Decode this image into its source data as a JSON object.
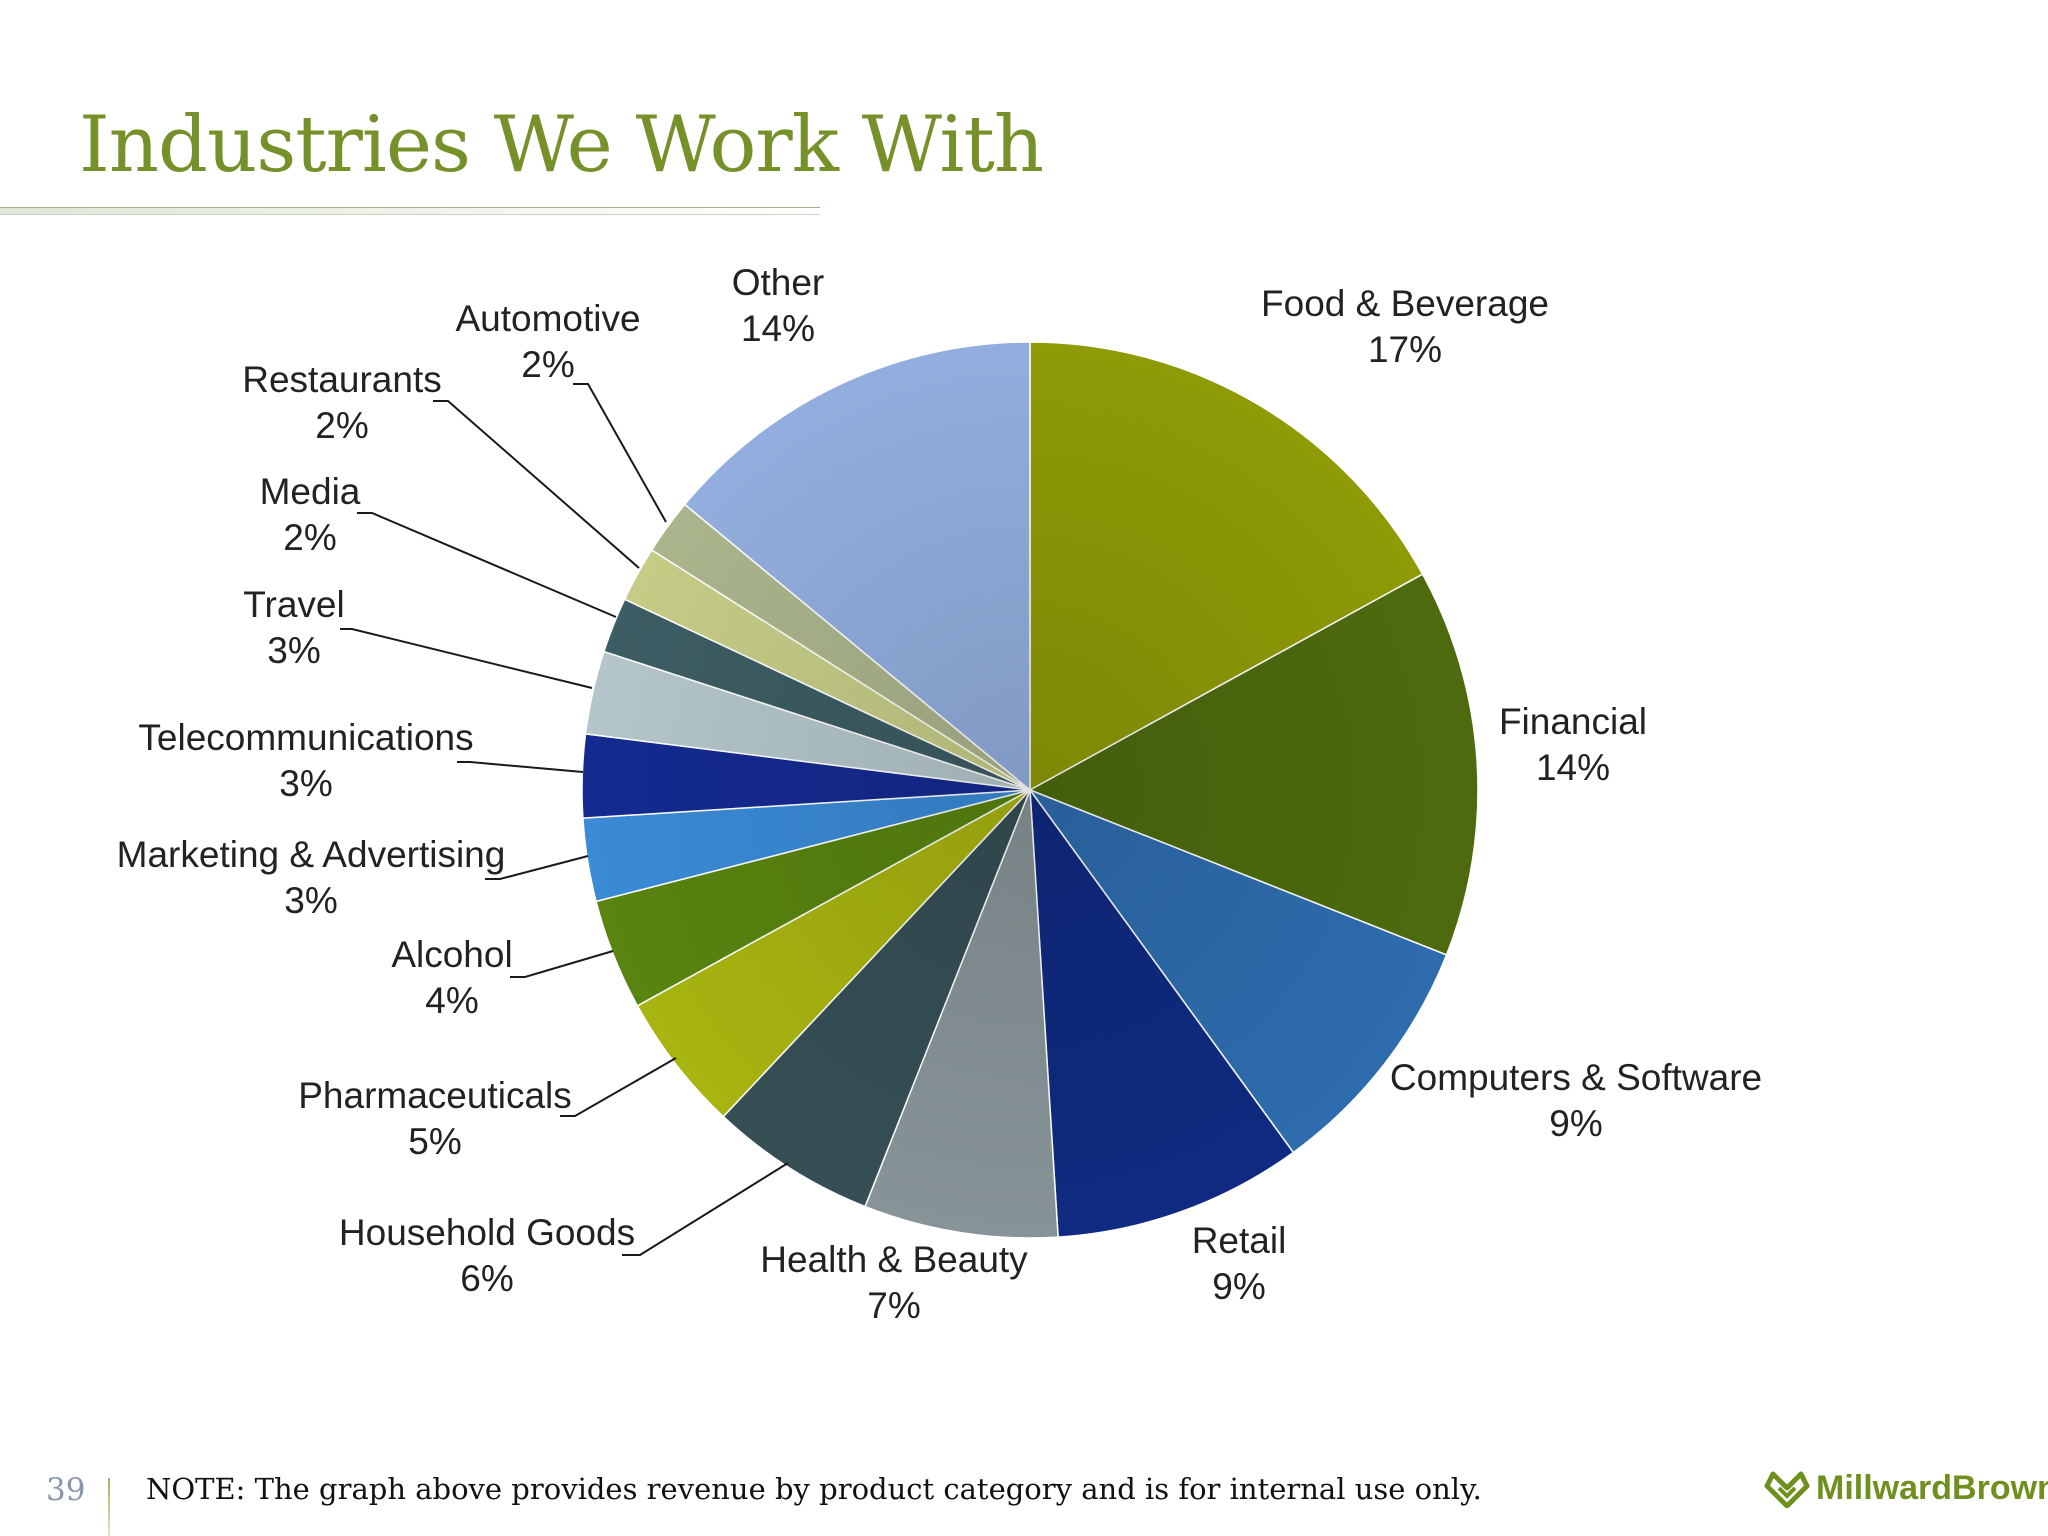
{
  "slide": {
    "title": "Industries We Work With",
    "page_number": "39",
    "note": "NOTE:  The graph above provides revenue by product category and is for internal use only."
  },
  "brand": {
    "name_part1": "Millward",
    "name_part2": "Brown",
    "icon": "heart-chevron-logo",
    "color": "#6f8f1e"
  },
  "chart_data": {
    "type": "pie",
    "title": "",
    "start": "12 o'clock",
    "direction": "clockwise",
    "legend": "none",
    "slices": [
      {
        "label": "Food & Beverage",
        "value": 17,
        "value_label": "17%",
        "color": "#8e9a06"
      },
      {
        "label": "Financial",
        "value": 14,
        "value_label": "14%",
        "color": "#4d6b0e"
      },
      {
        "label": "Computers & Software",
        "value": 9,
        "value_label": "9%",
        "color": "#2e6cae"
      },
      {
        "label": "Retail",
        "value": 9,
        "value_label": "9%",
        "color": "#0f2a80"
      },
      {
        "label": "Health & Beauty",
        "value": 7,
        "value_label": "7%",
        "color": "#879497"
      },
      {
        "label": "Household Goods",
        "value": 6,
        "value_label": "6%",
        "color": "#354f55"
      },
      {
        "label": "Pharmaceuticals",
        "value": 5,
        "value_label": "5%",
        "color": "#a8b410"
      },
      {
        "label": "Alcohol",
        "value": 4,
        "value_label": "4%",
        "color": "#58840f"
      },
      {
        "label": "Marketing & Advertising",
        "value": 3,
        "value_label": "3%",
        "color": "#3a8ad6"
      },
      {
        "label": "Telecommunications",
        "value": 3,
        "value_label": "3%",
        "color": "#142a90"
      },
      {
        "label": "Travel",
        "value": 3,
        "value_label": "3%",
        "color": "#b4c6ca"
      },
      {
        "label": "Media",
        "value": 2,
        "value_label": "2%",
        "color": "#3c5d63"
      },
      {
        "label": "Restaurants",
        "value": 2,
        "value_label": "2%",
        "color": "#c6cc86"
      },
      {
        "label": "Automotive",
        "value": 2,
        "value_label": "2%",
        "color": "#abb58c"
      },
      {
        "label": "Other",
        "value": 14,
        "value_label": "14%",
        "color": "#92aede"
      }
    ]
  }
}
